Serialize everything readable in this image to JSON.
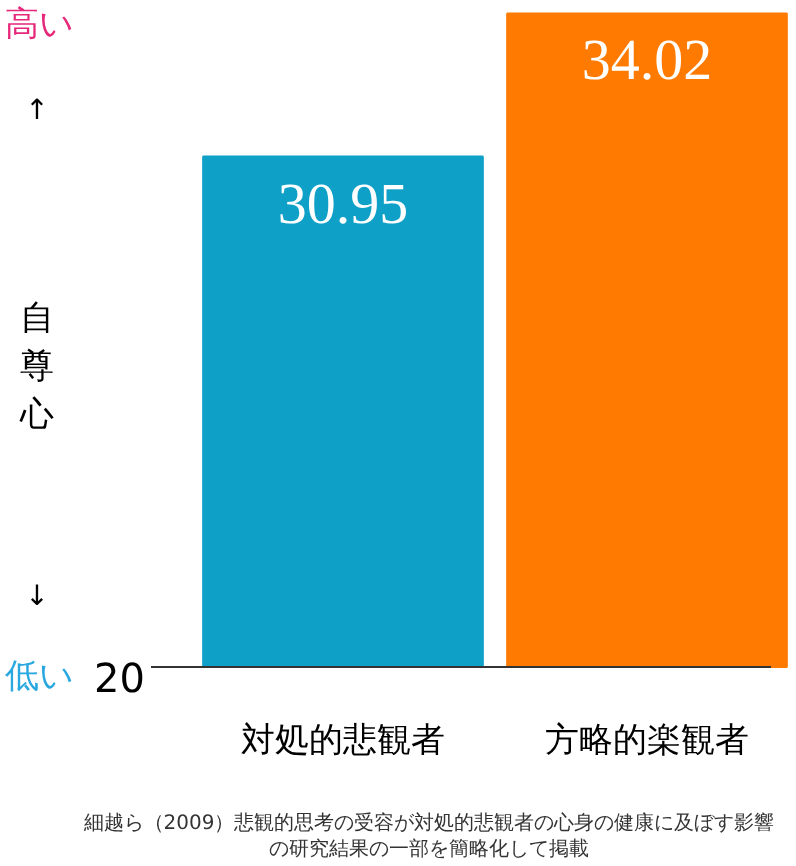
{
  "chart_data": {
    "type": "bar",
    "ylabel": "自尊心",
    "ylim": [
      20,
      34.2
    ],
    "data_labels": true,
    "categories": [
      "対処的悲観者",
      "方略的楽観者"
    ],
    "values": [
      30.95,
      34.02
    ],
    "colors": [
      "#0fa0c8",
      "#ff7a00"
    ],
    "grid": false,
    "annotations": [
      "高い",
      "↑",
      "↓",
      "低い",
      "20",
      "細越ら（2009）悲観的思考の受容が対処的悲観者の心身の健康に及ぼす影響の研究結果の一部を簡略化して掲載"
    ]
  }
}
